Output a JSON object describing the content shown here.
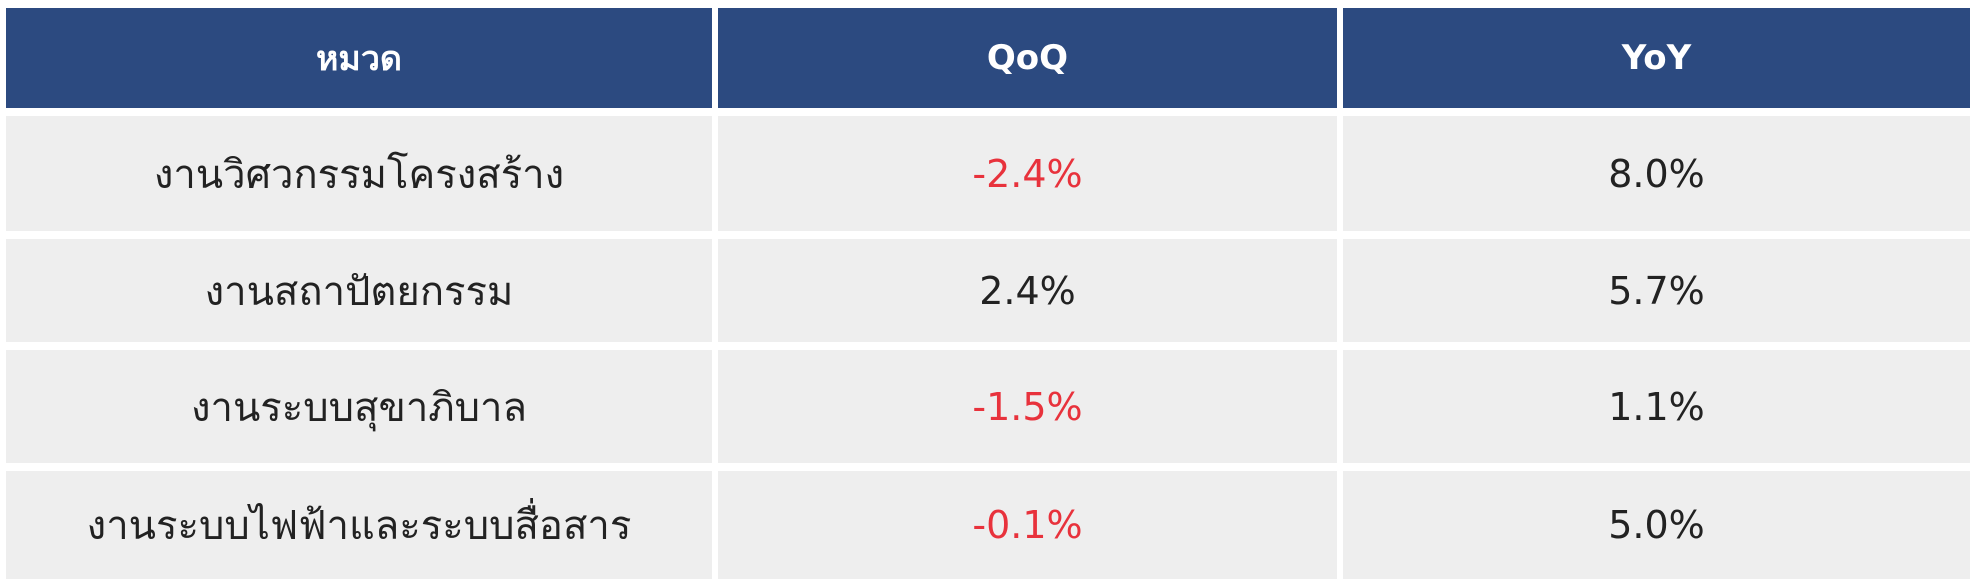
{
  "chart_data": {
    "type": "table",
    "columns": [
      "หมวด",
      "QoQ",
      "YoY"
    ],
    "rows": [
      {
        "category": "งานวิศวกรรมโครงสร้าง",
        "qoq": "-2.4%",
        "yoy": "8.0%"
      },
      {
        "category": "งานสถาปัตยกรรม",
        "qoq": "2.4%",
        "yoy": "5.7%"
      },
      {
        "category": "งานระบบสุขาภิบาล",
        "qoq": "-1.5%",
        "yoy": "1.1%"
      },
      {
        "category": "งานระบบไฟฟ้าและระบบสื่อสาร",
        "qoq": "-0.1%",
        "yoy": "5.0%"
      }
    ],
    "values": {
      "qoq": [
        -2.4,
        2.4,
        -1.5,
        -0.1
      ],
      "yoy": [
        8.0,
        5.7,
        1.1,
        5.0
      ]
    }
  },
  "colors": {
    "header_bg": "#2c4a80",
    "header_text": "#ffffff",
    "row_bg": "#eeeeee",
    "text": "#222222",
    "negative": "#e8323c"
  }
}
